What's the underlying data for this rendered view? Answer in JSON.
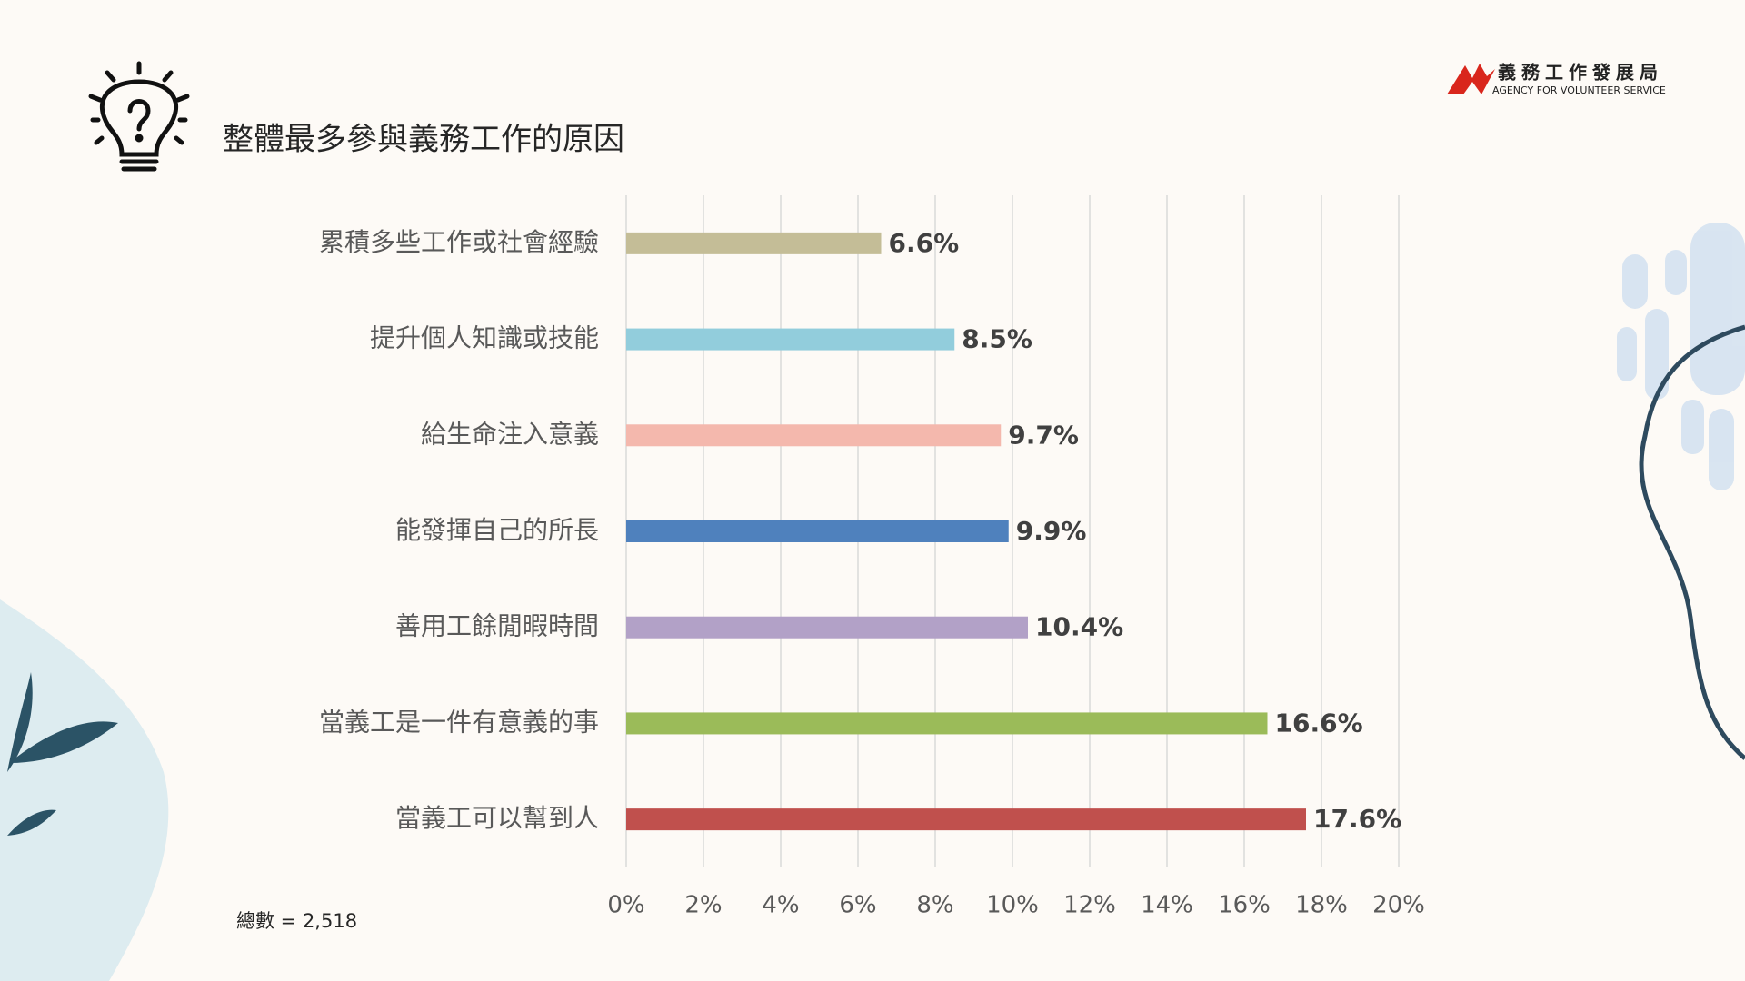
{
  "chart_data": {
    "type": "bar",
    "orientation": "horizontal",
    "title": "整體最多參與義務工作的原因",
    "categories": [
      "累積多些工作或社會經驗",
      "提升個人知識或技能",
      "給生命注入意義",
      "能發揮自己的所長",
      "善用工餘閒暇時間",
      "當義工是一件有意義的事",
      "當義工可以幫到人"
    ],
    "values": [
      6.6,
      8.5,
      9.7,
      9.9,
      10.4,
      16.6,
      17.6
    ],
    "value_labels": [
      "6.6%",
      "8.5%",
      "9.7%",
      "9.9%",
      "10.4%",
      "16.6%",
      "17.6%"
    ],
    "colors": [
      "#c4bd97",
      "#92cddc",
      "#f4b8ad",
      "#4f81bd",
      "#b2a1c7",
      "#9bbb59",
      "#c0504d"
    ],
    "xlim": [
      0,
      20
    ],
    "xticks": [
      {
        "value": 0,
        "label": "0%"
      },
      {
        "value": 2,
        "label": "2%"
      },
      {
        "value": 4,
        "label": "4%"
      },
      {
        "value": 6,
        "label": "6%"
      },
      {
        "value": 8,
        "label": "8%"
      },
      {
        "value": 10,
        "label": "10%"
      },
      {
        "value": 12,
        "label": "12%"
      },
      {
        "value": 14,
        "label": "14%"
      },
      {
        "value": 16,
        "label": "16%"
      },
      {
        "value": 18,
        "label": "18%"
      },
      {
        "value": 20,
        "label": "20%"
      }
    ],
    "grid": true,
    "annotation": "總數 = 2,518"
  },
  "logo": {
    "name": "義務工作發展局",
    "subtitle": "AGENCY FOR VOLUNTEER SERVICE"
  }
}
